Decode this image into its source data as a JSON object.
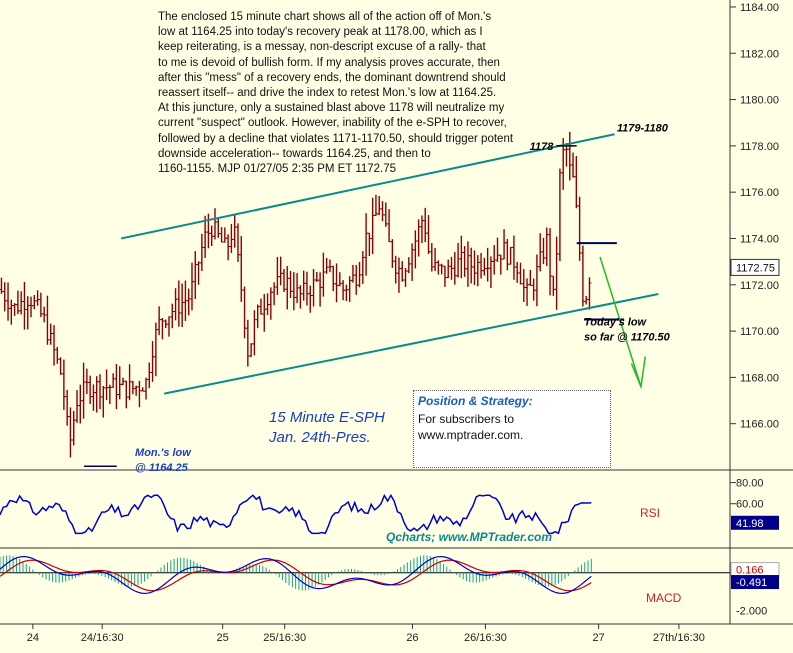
{
  "commentary": "The enclosed 15 minute chart shows all of the action off of  Mon.'s\nlow at 1164.25 into today's recovery peak at 1178.00, which as I\nkeep reiterating, is a messay, non-descript excuse of a rally- that\nto me is devoid of bullish form. If my analysis proves accurate, then\nafter this \"mess\" of a recovery ends, the dominant downtrend should\nreassert itself-- and drive the index to retest Mon.'s low at 1164.25.\nAt this juncture, only a sustained blast above 1178 will neutralize my\ncurrent \"suspect\" outlook. However, inability of the e-SPH to recover,\nfollowed by a decline that violates 1171-1170.50, should trigger potent\ndownside acceleration-- towards 1164.25, and then to\n1160-1155.  MJP 01/27/05  2:35 PM ET  1172.75",
  "box": {
    "header": "Position & Strategy:",
    "line1": "For subscribers to",
    "line2": "www.mptrader.com."
  },
  "colors": {
    "background": "#ffffe6",
    "price_bar": "#8b0000",
    "channel": "#0a8a8a",
    "rsi": "#0000cc",
    "macd_line": "#0000cc",
    "signal_line": "#cc0000",
    "histogram": "#1aa08a",
    "annotation_blue": "#1a3fbf",
    "rsi_label": "#cc2222"
  },
  "chart_data": [
    {
      "type": "bar",
      "subtype": "ohlc",
      "title": "15 Minute E-SPH",
      "subtitle": "Jan. 24th-Pres.",
      "credit": "Qcharts; www.MPTrader.com",
      "price_ticks": [
        1166.0,
        1168.0,
        1170.0,
        1172.0,
        1174.0,
        1176.0,
        1178.0,
        1180.0,
        1182.0,
        1184.0
      ],
      "ylim": [
        1164.0,
        1184.3
      ],
      "last_price": "1172.75",
      "x_ticks": [
        "24",
        "24/16:30",
        "25",
        "25/16:30",
        "26",
        "26/16:30",
        "27",
        "27th/16:30"
      ],
      "annotations": [
        {
          "text": "1178",
          "price": 1178.0
        },
        {
          "text": "1179-1180"
        },
        {
          "text": "Today's low",
          "text2": "so far @ 1170.50",
          "price": 1170.5
        },
        {
          "text": "Mon.'s low",
          "text2": "@ 1164.25",
          "price": 1164.25
        }
      ],
      "channel_upper": [
        [
          0.166,
          1174.0
        ],
        [
          0.835,
          1178.5
        ]
      ],
      "channel_lower": [
        [
          0.225,
          1167.3
        ],
        [
          0.895,
          1171.6
        ]
      ],
      "price_path": [
        [
          0.0,
          1171.8
        ],
        [
          0.02,
          1171.0
        ],
        [
          0.04,
          1171.5
        ],
        [
          0.06,
          1170.5
        ],
        [
          0.075,
          1169.0
        ],
        [
          0.085,
          1168.0
        ],
        [
          0.095,
          1165.0
        ],
        [
          0.105,
          1167.0
        ],
        [
          0.12,
          1167.6
        ],
        [
          0.15,
          1167.6
        ],
        [
          0.18,
          1167.5
        ],
        [
          0.2,
          1167.8
        ],
        [
          0.21,
          1169.5
        ],
        [
          0.22,
          1170.5
        ],
        [
          0.24,
          1171.0
        ],
        [
          0.26,
          1171.5
        ],
        [
          0.28,
          1174.0
        ],
        [
          0.29,
          1174.5
        ],
        [
          0.31,
          1173.5
        ],
        [
          0.32,
          1174.5
        ],
        [
          0.33,
          1172.0
        ],
        [
          0.34,
          1169.0
        ],
        [
          0.35,
          1170.5
        ],
        [
          0.37,
          1171.8
        ],
        [
          0.39,
          1172.2
        ],
        [
          0.41,
          1171.5
        ],
        [
          0.43,
          1172.0
        ],
        [
          0.45,
          1172.5
        ],
        [
          0.47,
          1171.8
        ],
        [
          0.49,
          1172.5
        ],
        [
          0.5,
          1174.0
        ],
        [
          0.51,
          1174.5
        ],
        [
          0.52,
          1175.5
        ],
        [
          0.53,
          1174.0
        ],
        [
          0.54,
          1173.0
        ],
        [
          0.55,
          1172.5
        ],
        [
          0.57,
          1174.0
        ],
        [
          0.58,
          1175.0
        ],
        [
          0.59,
          1172.8
        ],
        [
          0.61,
          1172.5
        ],
        [
          0.63,
          1173.0
        ],
        [
          0.65,
          1172.8
        ],
        [
          0.67,
          1173.2
        ],
        [
          0.69,
          1173.5
        ],
        [
          0.71,
          1172.8
        ],
        [
          0.72,
          1171.5
        ],
        [
          0.73,
          1172.0
        ],
        [
          0.74,
          1173.0
        ],
        [
          0.75,
          1174.0
        ],
        [
          0.755,
          1172.0
        ],
        [
          0.76,
          1171.0
        ],
        [
          0.765,
          1176.0
        ],
        [
          0.77,
          1177.5
        ],
        [
          0.775,
          1178.0
        ],
        [
          0.78,
          1177.0
        ],
        [
          0.785,
          1176.5
        ],
        [
          0.79,
          1175.0
        ],
        [
          0.795,
          1173.0
        ],
        [
          0.8,
          1171.0
        ],
        [
          0.805,
          1172.0
        ],
        [
          0.81,
          1172.75
        ]
      ]
    },
    {
      "type": "line",
      "title": "RSI",
      "ticks": [
        80.0,
        60.0,
        41.98
      ],
      "ylim": [
        20,
        90
      ],
      "last_value": "41.98",
      "series": [
        {
          "values_summary": "oscillating between ~35 and ~65"
        }
      ]
    },
    {
      "type": "line",
      "title": "MACD",
      "ticks": [
        "0.166",
        "-0.491",
        "-2.000"
      ],
      "ylim": [
        -2.6,
        1.2
      ]
    }
  ]
}
